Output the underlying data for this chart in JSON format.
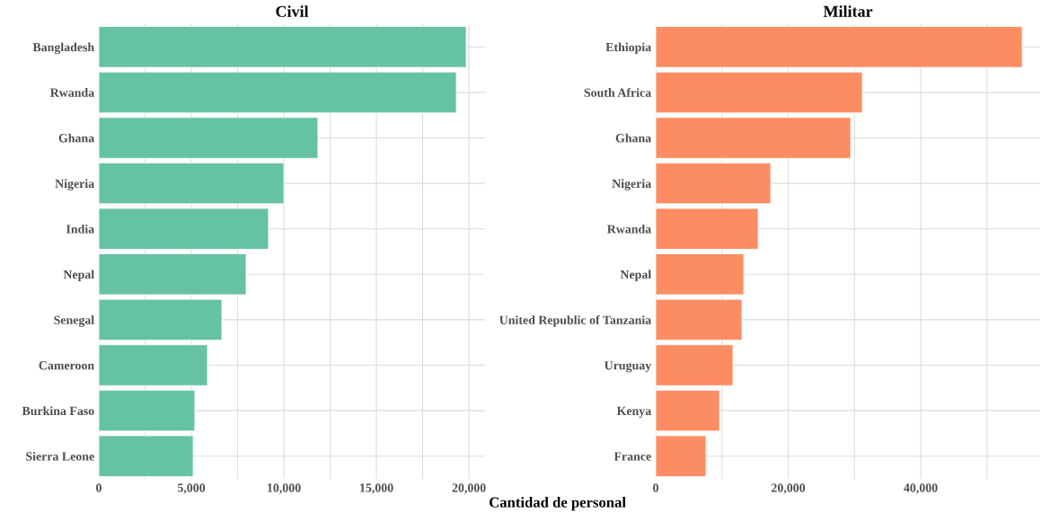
{
  "chart_data": [
    {
      "type": "bar",
      "orientation": "horizontal",
      "title": "Civil",
      "xlabel": "Cantidad de personal",
      "categories": [
        "Bangladesh",
        "Rwanda",
        "Ghana",
        "Nigeria",
        "India",
        "Nepal",
        "Senegal",
        "Cameroon",
        "Burkina Faso",
        "Sierra Leone"
      ],
      "values": [
        19850,
        19320,
        11840,
        10000,
        9170,
        7960,
        6650,
        5870,
        5190,
        5100
      ],
      "color": "#66c2a5",
      "xlim": [
        0,
        20870
      ],
      "xticks": [
        {
          "value": 0,
          "label": "0"
        },
        {
          "value": 2500,
          "label": null
        },
        {
          "value": 5000,
          "label": "5,000"
        },
        {
          "value": 7500,
          "label": null
        },
        {
          "value": 10000,
          "label": "10,000"
        },
        {
          "value": 12500,
          "label": null
        },
        {
          "value": 15000,
          "label": "15,000"
        },
        {
          "value": 17500,
          "label": null
        },
        {
          "value": 20000,
          "label": "20,000"
        }
      ],
      "grid": true
    },
    {
      "type": "bar",
      "orientation": "horizontal",
      "title": "Militar",
      "categories": [
        "Ethiopia",
        "South Africa",
        "Ghana",
        "Nigeria",
        "Rwanda",
        "Nepal",
        "United Republic of Tanzania",
        "Uruguay",
        "Kenya",
        "France"
      ],
      "values": [
        55320,
        31190,
        29420,
        17360,
        15460,
        13290,
        13020,
        11660,
        9630,
        7590
      ],
      "color": "#fc8d62",
      "xlim": [
        0,
        58030
      ],
      "xticks": [
        {
          "value": 0,
          "label": "0"
        },
        {
          "value": 10000,
          "label": null
        },
        {
          "value": 20000,
          "label": "20,000"
        },
        {
          "value": 30000,
          "label": null
        },
        {
          "value": 40000,
          "label": "40,000"
        },
        {
          "value": 50000,
          "label": null
        }
      ],
      "grid": true
    }
  ]
}
